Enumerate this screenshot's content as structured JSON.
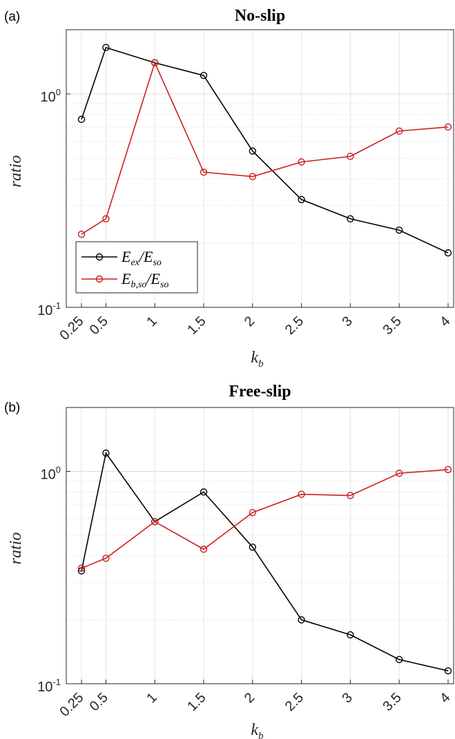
{
  "chart_data": [
    {
      "panel_label": "(a)",
      "type": "line",
      "title": "No-slip",
      "xlabel": {
        "main": "k",
        "sub": "b"
      },
      "ylabel": "ratio",
      "x": [
        0.25,
        0.5,
        1,
        1.5,
        2,
        2.5,
        3,
        3.5,
        4
      ],
      "x_tick_labels": [
        "0.25",
        "0.5",
        "1",
        "1.5",
        "2",
        "2.5",
        "3",
        "3.5",
        "4"
      ],
      "y_scale": "log",
      "ylim": [
        0.1,
        2.0
      ],
      "y_ticks": [
        {
          "base": "10",
          "exp": "-1"
        },
        {
          "base": "10",
          "exp": "0"
        }
      ],
      "grid": true,
      "legend": "bottom-left",
      "series": [
        {
          "color": "#000000",
          "legend_main": "E",
          "legend_sub1": "ex",
          "legend_sep": "/E",
          "legend_sub2": "so",
          "values": [
            0.76,
            1.65,
            1.4,
            1.22,
            0.54,
            0.32,
            0.26,
            0.23,
            0.18
          ]
        },
        {
          "color": "#cc1f1f",
          "legend_main": "E",
          "legend_sub1": "b,so",
          "legend_sep": "/E",
          "legend_sub2": "so",
          "values": [
            0.22,
            0.26,
            1.4,
            0.43,
            0.41,
            0.48,
            0.51,
            0.67,
            0.7
          ]
        }
      ]
    },
    {
      "panel_label": "(b)",
      "type": "line",
      "title": "Free-slip",
      "xlabel": {
        "main": "k",
        "sub": "b"
      },
      "ylabel": "ratio",
      "x": [
        0.25,
        0.5,
        1,
        1.5,
        2,
        2.5,
        3,
        3.5,
        4
      ],
      "x_tick_labels": [
        "0.25",
        "0.5",
        "1",
        "1.5",
        "2",
        "2.5",
        "3",
        "3.5",
        "4"
      ],
      "y_scale": "log",
      "ylim": [
        0.1,
        2.0
      ],
      "y_ticks": [
        {
          "base": "10",
          "exp": "-1"
        },
        {
          "base": "10",
          "exp": "0"
        }
      ],
      "grid": true,
      "legend": "none",
      "series": [
        {
          "color": "#000000",
          "values": [
            0.34,
            1.22,
            0.58,
            0.8,
            0.44,
            0.2,
            0.17,
            0.13,
            0.115
          ]
        },
        {
          "color": "#cc1f1f",
          "values": [
            0.35,
            0.39,
            0.58,
            0.43,
            0.64,
            0.78,
            0.77,
            0.98,
            1.02
          ]
        }
      ]
    }
  ]
}
